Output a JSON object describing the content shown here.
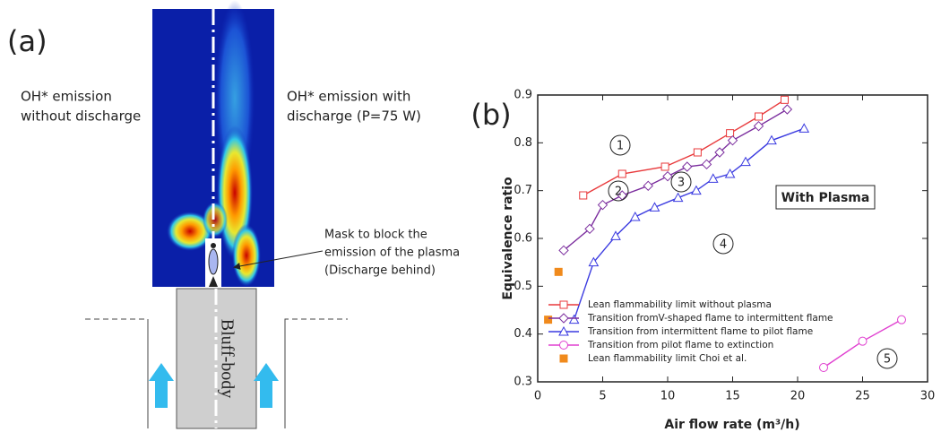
{
  "panel_a": {
    "label": "(a)",
    "left_caption": [
      "OH* emission",
      "without discharge"
    ],
    "right_caption": [
      "OH* emission with",
      "discharge (P=75 W)"
    ],
    "mask_caption": [
      "Mask to block the",
      "emission of the plasma",
      "(Discharge behind)"
    ],
    "body_label": "Bluff-body"
  },
  "chart_data": {
    "type": "line",
    "panel_label": "(b)",
    "x_label": "Air flow rate (m³/h)",
    "y_label": "Equivalence ratio",
    "xlim": [
      0,
      30
    ],
    "xticks": [
      0,
      5,
      10,
      15,
      20,
      25,
      30
    ],
    "ylim": [
      0.3,
      0.9
    ],
    "yticks": [
      0.3,
      0.4,
      0.5,
      0.6,
      0.7,
      0.8,
      0.9
    ],
    "legend": "lower left",
    "annotations": [
      "1",
      "2",
      "3",
      "4",
      "5",
      "With Plasma"
    ],
    "series": [
      {
        "name": "Lean flammability limit without plasma",
        "color": "#e8393b",
        "marker": "square",
        "line": true,
        "x": [
          3.5,
          6.5,
          9.8,
          12.3,
          14.8,
          17,
          19
        ],
        "values": [
          0.69,
          0.735,
          0.75,
          0.78,
          0.82,
          0.855,
          0.89
        ]
      },
      {
        "name": "Transition fromV-shaped flame to intermittent flame",
        "color": "#7b2d9e",
        "marker": "diamond",
        "line": true,
        "x": [
          2,
          4,
          5,
          6.5,
          8.5,
          10,
          11.5,
          13,
          14,
          15,
          17,
          19.2
        ],
        "values": [
          0.575,
          0.62,
          0.67,
          0.69,
          0.71,
          0.73,
          0.75,
          0.755,
          0.78,
          0.805,
          0.835,
          0.87
        ]
      },
      {
        "name": "Transition from intermittent flame to pilot flame",
        "color": "#3a3ae0",
        "marker": "triangle",
        "line": true,
        "x": [
          2.8,
          4.3,
          6,
          7.5,
          9,
          10.8,
          12.2,
          13.5,
          14.8,
          16,
          18,
          20.5
        ],
        "values": [
          0.43,
          0.55,
          0.605,
          0.645,
          0.665,
          0.685,
          0.7,
          0.725,
          0.735,
          0.76,
          0.805,
          0.83
        ]
      },
      {
        "name": "Transition from pilot flame to extinction",
        "color": "#e040d0",
        "marker": "circle",
        "line": true,
        "x": [
          22,
          25,
          28
        ],
        "values": [
          0.33,
          0.385,
          0.43
        ]
      },
      {
        "name": "Lean flammability limit Choi et al.",
        "color": "#f08a1c",
        "marker": "filled-square",
        "line": false,
        "x": [
          0.8,
          1.6
        ],
        "values": [
          0.43,
          0.53
        ]
      }
    ]
  }
}
